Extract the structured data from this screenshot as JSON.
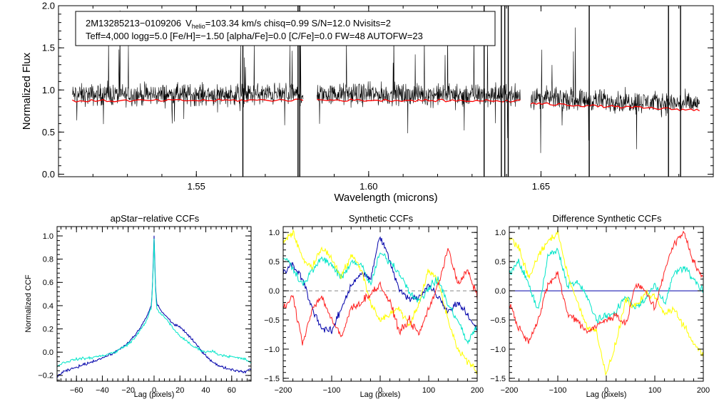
{
  "chart_data": [
    {
      "type": "line",
      "name": "spectrum",
      "info_line1_object": "2M13285213−0109206",
      "info_v_symbol": "V",
      "info_v_subscript": "helio",
      "info_line1_rest": "=103.34 km/s  chisq=0.99  S/N=12.0  Nvisits=2",
      "info_line2": "Teff=4,000 logg=5.0 [Fe/H]=−1.50 [alpha/Fe]=0.0 [C/Fe]=0.0 FW=48 AUTOFW=23",
      "xlabel": "Wavelength (microns)",
      "ylabel": "Normalized Flux",
      "xlim": [
        1.51,
        1.7
      ],
      "ylim": [
        -0.03,
        2.0
      ],
      "xticks": [
        "1.55",
        "1.60",
        "1.65"
      ],
      "xtick_values": [
        1.55,
        1.6,
        1.65
      ],
      "yticks": [
        "0.0",
        "0.5",
        "1.0",
        "1.5",
        "2.0"
      ],
      "ytick_values": [
        0.0,
        0.5,
        1.0,
        1.5,
        2.0
      ],
      "chip_ranges": [
        [
          1.514,
          1.581
        ],
        [
          1.585,
          1.644
        ],
        [
          1.647,
          1.696
        ]
      ],
      "model_levels": [
        [
          0.87,
          0.88
        ],
        [
          0.88,
          0.87
        ],
        [
          0.84,
          0.76
        ]
      ],
      "series": [
        {
          "name": "observed spectrum",
          "color": "#000000"
        },
        {
          "name": "model spectrum",
          "color": "#ff0000"
        }
      ]
    },
    {
      "type": "line",
      "name": "apstar-ccf",
      "title": "apStar−relative CCFs",
      "xlabel": "Lag (pixels)",
      "ylabel": "Normalized CCF",
      "xlim": [
        -75,
        75
      ],
      "ylim": [
        -0.25,
        1.08
      ],
      "xticks": [
        "−60",
        "−40",
        "−20",
        "0",
        "20",
        "40",
        "60"
      ],
      "xtick_values": [
        -60,
        -40,
        -20,
        0,
        20,
        40,
        60
      ],
      "yticks": [
        "−0.2",
        "0.0",
        "0.2",
        "0.4",
        "0.6",
        "0.8",
        "1.0"
      ],
      "ytick_values": [
        -0.2,
        0.0,
        0.2,
        0.4,
        0.6,
        0.8,
        1.0
      ],
      "series": [
        {
          "name": "visit 1",
          "color": "#0000aa",
          "x": [
            -75,
            -70,
            -60,
            -50,
            -40,
            -30,
            -20,
            -15,
            -10,
            -6,
            -4,
            -2,
            -1,
            0,
            1,
            2,
            4,
            6,
            10,
            15,
            20,
            30,
            40,
            45,
            50,
            60,
            70,
            75
          ],
          "y": [
            -0.21,
            -0.17,
            -0.13,
            -0.09,
            -0.05,
            0.0,
            0.08,
            0.14,
            0.22,
            0.3,
            0.35,
            0.4,
            0.65,
            1.0,
            0.6,
            0.42,
            0.38,
            0.35,
            0.3,
            0.24,
            0.22,
            0.1,
            -0.03,
            -0.08,
            -0.12,
            -0.15,
            -0.17,
            -0.14
          ]
        },
        {
          "name": "visit 2",
          "color": "#00e5c8",
          "x": [
            -75,
            -70,
            -60,
            -50,
            -40,
            -30,
            -20,
            -15,
            -10,
            -6,
            -4,
            -2,
            -1,
            0,
            1,
            2,
            4,
            6,
            10,
            15,
            20,
            30,
            40,
            45,
            50,
            60,
            70,
            75
          ],
          "y": [
            -0.12,
            -0.09,
            -0.06,
            -0.05,
            -0.03,
            0.0,
            0.07,
            0.12,
            0.2,
            0.27,
            0.33,
            0.38,
            0.62,
            0.97,
            0.55,
            0.38,
            0.34,
            0.32,
            0.28,
            0.2,
            0.14,
            0.05,
            0.0,
            0.01,
            -0.02,
            -0.04,
            -0.06,
            -0.09
          ]
        }
      ]
    },
    {
      "type": "line",
      "name": "synthetic-ccf",
      "title": "Synthetic CCFs",
      "xlabel": "Lag (pixels)",
      "ylabel": "",
      "xlim": [
        -200,
        200
      ],
      "ylim": [
        -1.55,
        1.1
      ],
      "xticks": [
        "−200",
        "−100",
        "0",
        "100",
        "200"
      ],
      "xtick_values": [
        -200,
        -100,
        0,
        100,
        200
      ],
      "yticks": [
        "−1.5",
        "−1.0",
        "−0.5",
        "0.0",
        "0.5",
        "1.0"
      ],
      "ytick_values": [
        -1.5,
        -1.0,
        -0.5,
        0.0,
        0.5,
        1.0
      ],
      "series": [
        {
          "name": "model 1",
          "color": "#0000aa",
          "x": [
            -200,
            -180,
            -160,
            -140,
            -120,
            -100,
            -80,
            -60,
            -40,
            -20,
            0,
            20,
            40,
            60,
            80,
            100,
            120,
            140,
            160,
            180,
            200
          ],
          "y": [
            0.3,
            0.45,
            0.2,
            -0.3,
            -0.65,
            -0.7,
            -0.3,
            0.1,
            0.3,
            0.2,
            0.95,
            0.5,
            0.0,
            -0.15,
            -0.1,
            0.1,
            -0.1,
            -0.35,
            -0.2,
            -0.4,
            -0.7
          ]
        },
        {
          "name": "model 2",
          "color": "#00e5c8",
          "x": [
            -200,
            -180,
            -160,
            -140,
            -120,
            -100,
            -80,
            -60,
            -40,
            -20,
            0,
            20,
            40,
            60,
            80,
            100,
            120,
            140,
            160,
            180,
            200
          ],
          "y": [
            0.6,
            0.4,
            0.1,
            0.35,
            0.55,
            0.45,
            0.2,
            0.5,
            0.45,
            0.1,
            0.65,
            0.5,
            0.3,
            0.0,
            -0.2,
            0.05,
            0.2,
            -0.25,
            -0.5,
            -0.9,
            -0.6
          ]
        },
        {
          "name": "model 3",
          "color": "#ffff00",
          "x": [
            -200,
            -180,
            -160,
            -140,
            -120,
            -100,
            -80,
            -60,
            -40,
            -20,
            0,
            20,
            40,
            60,
            80,
            100,
            120,
            140,
            160,
            180,
            200
          ],
          "y": [
            0.85,
            1.0,
            0.55,
            0.4,
            0.75,
            0.55,
            0.25,
            0.6,
            0.4,
            -0.2,
            -0.5,
            -0.4,
            -0.3,
            -0.6,
            -0.2,
            0.35,
            0.15,
            -0.5,
            -1.0,
            -1.2,
            -1.4
          ]
        },
        {
          "name": "model 4",
          "color": "#ff2020",
          "x": [
            -200,
            -180,
            -160,
            -140,
            -120,
            -100,
            -80,
            -60,
            -40,
            -20,
            0,
            20,
            40,
            60,
            80,
            100,
            120,
            140,
            160,
            180,
            200
          ],
          "y": [
            -0.3,
            -0.1,
            -0.9,
            -0.3,
            -0.1,
            -0.5,
            -0.8,
            -0.3,
            -0.2,
            -0.05,
            0.1,
            -0.2,
            -0.7,
            -0.5,
            -0.75,
            -0.3,
            0.1,
            0.75,
            0.1,
            0.35,
            -0.1
          ]
        }
      ]
    },
    {
      "type": "line",
      "name": "difference-ccf",
      "title": "Difference Synthetic CCFs",
      "xlabel": "Lag (pixels)",
      "ylabel": "",
      "xlim": [
        -200,
        200
      ],
      "ylim": [
        -1.55,
        1.1
      ],
      "xticks": [
        "−200",
        "−100",
        "0",
        "100",
        "200"
      ],
      "xtick_values": [
        -200,
        -100,
        0,
        100,
        200
      ],
      "yticks": [
        "−1.5",
        "−1.0",
        "−0.5",
        "0.0",
        "0.5",
        "1.0"
      ],
      "ytick_values": [
        -1.5,
        -1.0,
        -0.5,
        0.0,
        0.5,
        1.0
      ],
      "series": [
        {
          "name": "reference",
          "color": "#0000aa",
          "x": [
            -200,
            200
          ],
          "y": [
            0.0,
            0.0
          ]
        },
        {
          "name": "diff 1",
          "color": "#00e5c8",
          "x": [
            -200,
            -180,
            -160,
            -140,
            -120,
            -100,
            -80,
            -60,
            -40,
            -20,
            0,
            20,
            40,
            60,
            80,
            100,
            120,
            140,
            160,
            180,
            200
          ],
          "y": [
            0.3,
            0.5,
            0.1,
            -0.35,
            0.6,
            0.7,
            0.1,
            0.15,
            -0.1,
            -0.5,
            -0.45,
            -0.35,
            -0.1,
            -0.3,
            -0.15,
            0.1,
            -0.2,
            0.3,
            0.4,
            0.2,
            0.0
          ]
        },
        {
          "name": "diff 2",
          "color": "#ffff00",
          "x": [
            -200,
            -180,
            -160,
            -140,
            -120,
            -100,
            -80,
            -60,
            -40,
            -20,
            0,
            20,
            40,
            60,
            80,
            100,
            120,
            140,
            160,
            180,
            200
          ],
          "y": [
            0.9,
            0.75,
            0.2,
            0.6,
            0.85,
            1.0,
            0.3,
            -0.2,
            -0.6,
            -0.7,
            -1.45,
            -0.9,
            -0.15,
            -0.3,
            -0.05,
            -0.1,
            -0.4,
            -0.3,
            -0.6,
            -0.9,
            -1.1
          ]
        },
        {
          "name": "diff 3",
          "color": "#ff2020",
          "x": [
            -200,
            -180,
            -160,
            -140,
            -120,
            -100,
            -80,
            -60,
            -40,
            -20,
            0,
            20,
            40,
            60,
            80,
            100,
            120,
            140,
            160,
            180,
            200
          ],
          "y": [
            -0.2,
            -0.65,
            -0.85,
            -0.5,
            0.1,
            0.3,
            -0.4,
            -0.5,
            -0.7,
            -0.6,
            -0.5,
            -0.4,
            -0.6,
            0.1,
            0.0,
            -0.3,
            0.35,
            0.8,
            1.0,
            0.5,
            0.2
          ]
        }
      ]
    }
  ]
}
